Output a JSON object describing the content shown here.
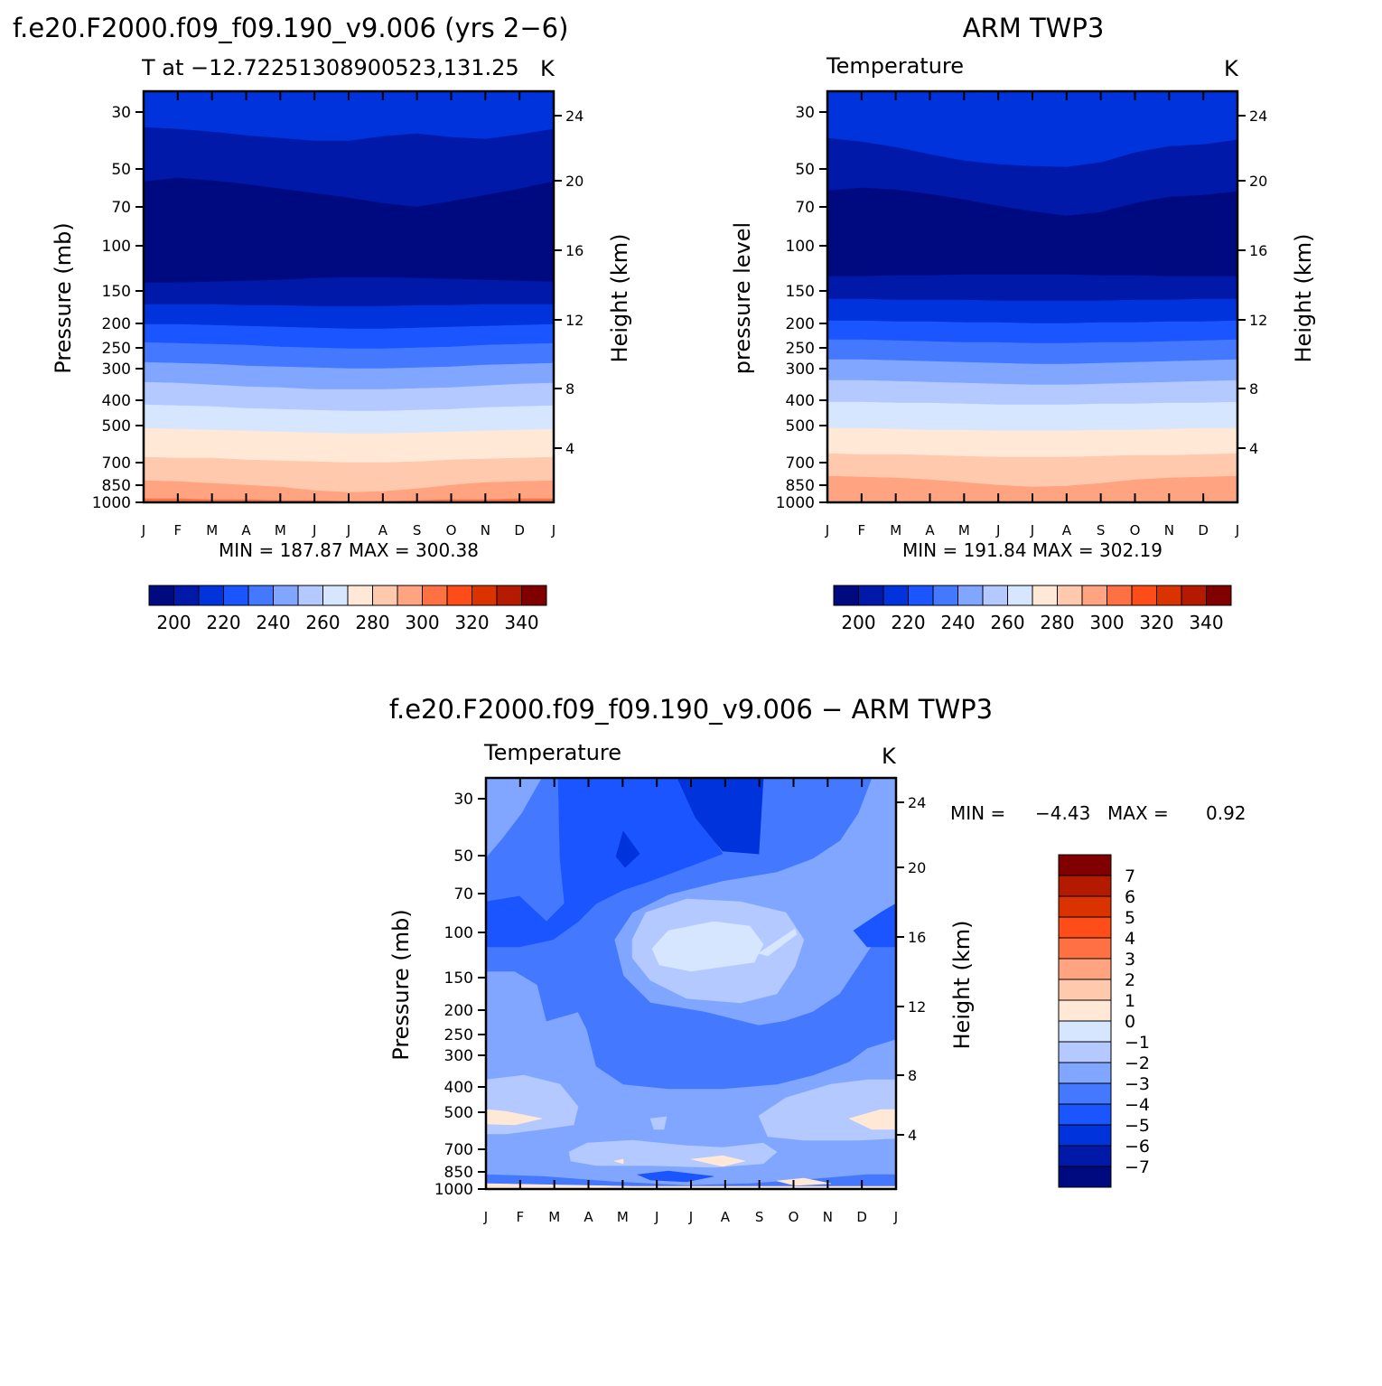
{
  "colorbar_levels": {
    "absolute": {
      "colors": [
        "#000a80",
        "#0019a8",
        "#0033db",
        "#1a55ff",
        "#4479ff",
        "#80a6ff",
        "#b3c9ff",
        "#d6e6ff",
        "#ffe8d6",
        "#ffc9ae",
        "#ffa380",
        "#ff7043",
        "#ff4d1a",
        "#db3300",
        "#b31a00",
        "#800000"
      ],
      "labels": [
        "200",
        "220",
        "240",
        "260",
        "280",
        "300",
        "320",
        "340"
      ]
    },
    "difference": {
      "colors": [
        "#000a80",
        "#0019a8",
        "#0033db",
        "#1a55ff",
        "#4479ff",
        "#80a6ff",
        "#b3c9ff",
        "#d6e6ff",
        "#ffe8d6",
        "#ffc9ae",
        "#ffa380",
        "#ff7043",
        "#ff4d1a",
        "#db3300",
        "#b31a00",
        "#800000"
      ],
      "labels": [
        "-7",
        "-6",
        "-5",
        "-4",
        "-3",
        "-2",
        "-1",
        "0",
        "1",
        "2",
        "3",
        "4",
        "5",
        "6",
        "7"
      ]
    }
  },
  "chart_data": [
    {
      "type": "heatmap",
      "panel_title": "f.e20.F2000.f09_f09.190_v9.006 (yrs 2−6)",
      "subtitle_left": "T at −12.72251308900523,131.25",
      "subtitle_right": "K",
      "ylabel": "Pressure (mb)",
      "ylabel_right": "Height (km)",
      "x_ticks": [
        "J",
        "F",
        "M",
        "A",
        "M",
        "J",
        "J",
        "A",
        "S",
        "O",
        "N",
        "D",
        "J"
      ],
      "y_ticks": [
        "30",
        "50",
        "70",
        "100",
        "150",
        "200",
        "250",
        "300",
        "400",
        "500",
        "700",
        "850",
        "1000"
      ],
      "y_ticks_right": [
        "24",
        "20",
        "16",
        "12",
        "8",
        "4"
      ],
      "stats": "MIN = 187.87 MAX = 300.38",
      "min": 187.87,
      "max": 300.38,
      "colorbar_labels": [
        "200",
        "220",
        "240",
        "260",
        "280",
        "300",
        "320",
        "340"
      ]
    },
    {
      "type": "heatmap",
      "panel_title": "ARM TWP3",
      "subtitle_left": "Temperature",
      "subtitle_right": "K",
      "ylabel": "pressure level",
      "ylabel_right": "Height (km)",
      "x_ticks": [
        "J",
        "F",
        "M",
        "A",
        "M",
        "J",
        "J",
        "A",
        "S",
        "O",
        "N",
        "D",
        "J"
      ],
      "y_ticks": [
        "30",
        "50",
        "70",
        "100",
        "150",
        "200",
        "250",
        "300",
        "400",
        "500",
        "700",
        "850",
        "1000"
      ],
      "y_ticks_right": [
        "24",
        "20",
        "16",
        "12",
        "8",
        "4"
      ],
      "stats": "MIN = 191.84 MAX = 302.19",
      "min": 191.84,
      "max": 302.19,
      "colorbar_labels": [
        "200",
        "220",
        "240",
        "260",
        "280",
        "300",
        "320",
        "340"
      ]
    },
    {
      "type": "heatmap",
      "panel_title": "f.e20.F2000.f09_f09.190_v9.006 − ARM TWP3",
      "subtitle_left": "Temperature",
      "subtitle_right": "K",
      "ylabel": "Pressure (mb)",
      "ylabel_right": "Height (km)",
      "x_ticks": [
        "J",
        "F",
        "M",
        "A",
        "M",
        "J",
        "J",
        "A",
        "S",
        "O",
        "N",
        "D",
        "J"
      ],
      "y_ticks": [
        "30",
        "50",
        "70",
        "100",
        "150",
        "200",
        "250",
        "300",
        "400",
        "500",
        "700",
        "850",
        "1000"
      ],
      "y_ticks_right": [
        "24",
        "20",
        "16",
        "12",
        "8",
        "4"
      ],
      "stats_min_label": "MIN =",
      "stats_min_value": "−4.43",
      "stats_max_label": "MAX =",
      "stats_max_value": "0.92",
      "min": -4.43,
      "max": 0.92,
      "colorbar_labels": [
        "7",
        "6",
        "5",
        "4",
        "3",
        "2",
        "1",
        "0",
        "−1",
        "−2",
        "−3",
        "−4",
        "−5",
        "−6",
        "−7"
      ]
    }
  ]
}
